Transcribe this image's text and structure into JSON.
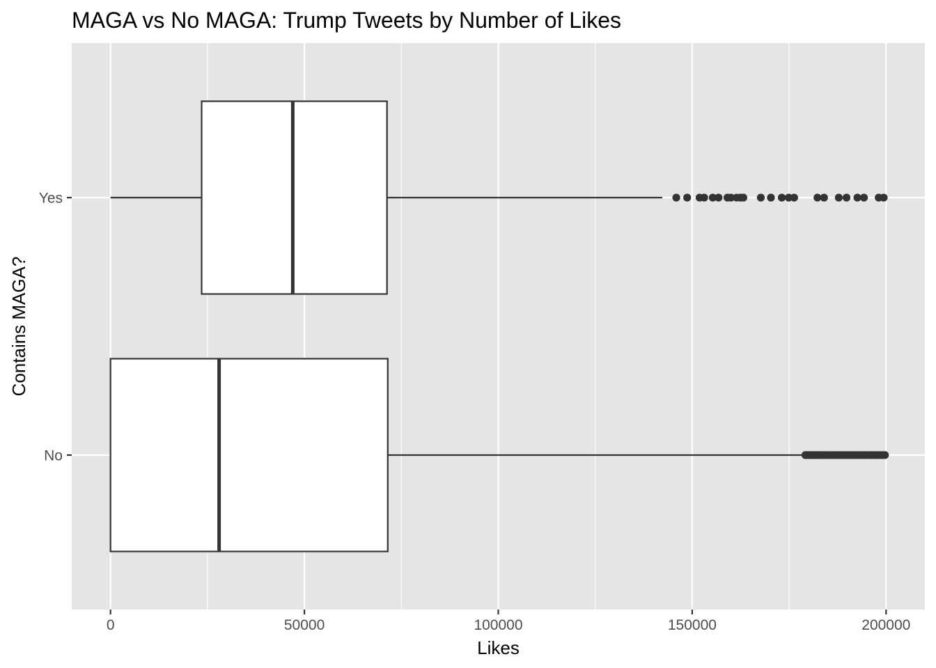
{
  "chart_data": {
    "type": "boxplot",
    "orientation": "horizontal",
    "title": "MAGA vs No MAGA: Trump Tweets by Number of Likes",
    "xlabel": "Likes",
    "ylabel": "Contains MAGA?",
    "xlim": [
      -10000,
      210000
    ],
    "xticks": [
      0,
      50000,
      100000,
      150000,
      200000
    ],
    "xtick_labels": [
      "0",
      "50000",
      "100000",
      "150000",
      "200000"
    ],
    "categories": [
      "Yes",
      "No"
    ],
    "grid": true,
    "background": "#e5e5e5",
    "box_fill": "#ffffff",
    "line_color": "#333333",
    "series": [
      {
        "category": "Yes",
        "whisker_low": 0,
        "q1": 23500,
        "median": 47000,
        "q3": 71300,
        "whisker_high": 142300,
        "outliers": [
          145900,
          148700,
          151900,
          153100,
          155300,
          156800,
          159100,
          160000,
          161500,
          162500,
          163200,
          167700,
          170300,
          173100,
          174900,
          176300,
          182300,
          184000,
          187800,
          189800,
          192600,
          194300,
          198100,
          199400
        ]
      },
      {
        "category": "No",
        "whisker_low": 0,
        "q1": 0,
        "median": 28000,
        "q3": 71500,
        "whisker_high": 178800,
        "outliers": [
          179200,
          179600,
          180000,
          180500,
          181000,
          181500,
          182000,
          182600,
          183200,
          183800,
          184400,
          185000,
          185700,
          186400,
          187100,
          187800,
          188500,
          189200,
          189900,
          190600,
          191300,
          192000,
          192700,
          193400,
          194100,
          194800,
          195500,
          196200,
          196900,
          197600,
          198300,
          199000,
          199700
        ]
      }
    ]
  }
}
